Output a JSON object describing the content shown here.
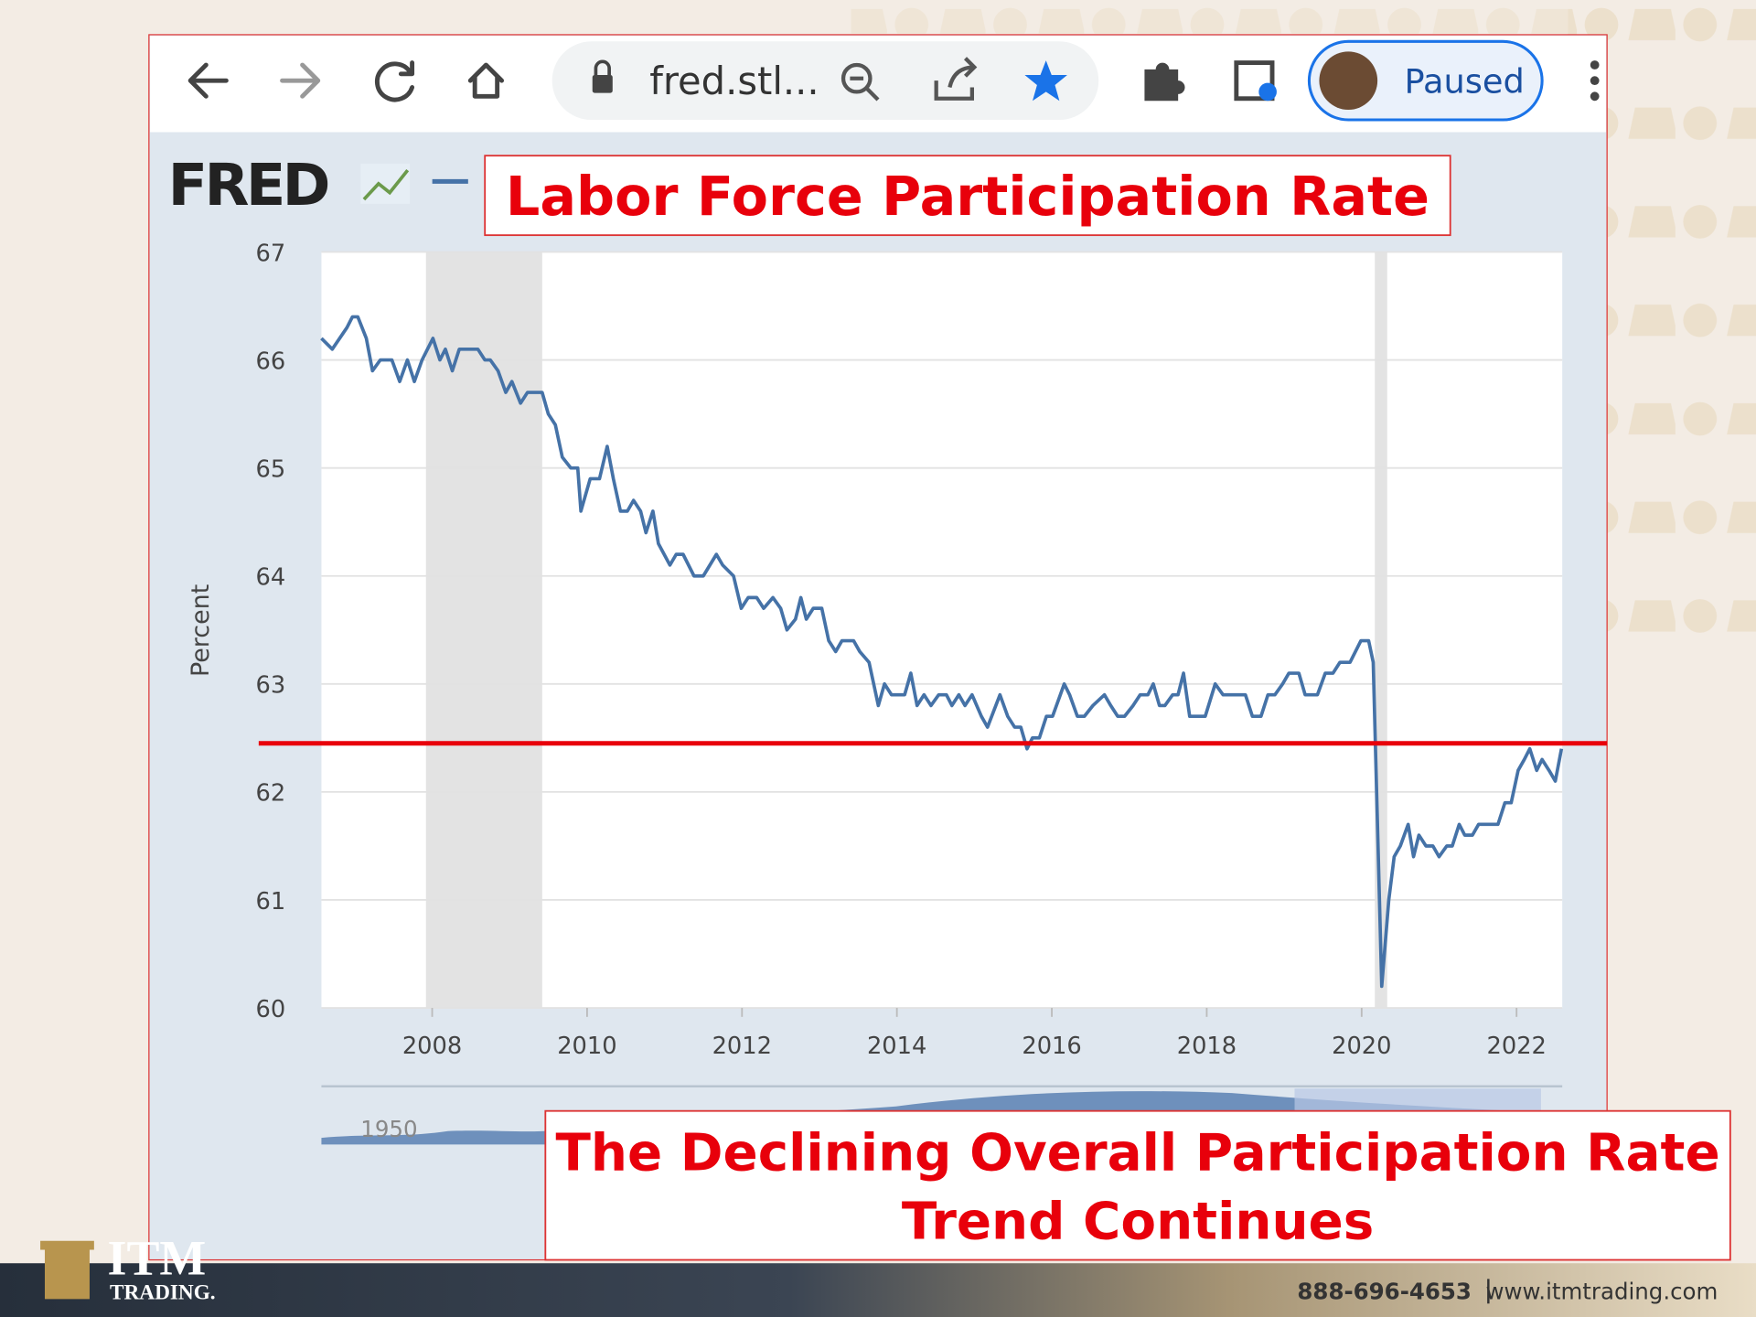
{
  "browser": {
    "url": "fred.stl...",
    "profile_status": "Paused"
  },
  "logo": "FRED",
  "chart_data": {
    "type": "line",
    "title": "Labor Force Participation Rate",
    "y_label": "Percent",
    "color": "#4572a7",
    "x": [
      2006.57,
      2006.71,
      2006.9,
      2006.97,
      2007.04,
      2007.15,
      2007.23,
      2007.33,
      2007.48,
      2007.58,
      2007.68,
      2007.77,
      2007.87,
      2008.01,
      2008.1,
      2008.17,
      2008.26,
      2008.35,
      2008.59,
      2008.68,
      2008.75,
      2008.85,
      2008.95,
      2009.03,
      2009.14,
      2009.23,
      2009.42,
      2009.5,
      2009.59,
      2009.68,
      2009.79,
      2009.88,
      2009.92,
      2010.04,
      2010.16,
      2010.26,
      2010.34,
      2010.43,
      2010.52,
      2010.6,
      2010.69,
      2010.76,
      2010.85,
      2010.92,
      2011.07,
      2011.15,
      2011.24,
      2011.38,
      2011.5,
      2011.67,
      2011.75,
      2011.89,
      2011.99,
      2012.08,
      2012.19,
      2012.28,
      2012.4,
      2012.5,
      2012.58,
      2012.69,
      2012.76,
      2012.83,
      2012.92,
      2013.03,
      2013.12,
      2013.21,
      2013.29,
      2013.44,
      2013.52,
      2013.64,
      2013.76,
      2013.84,
      2013.93,
      2014.1,
      2014.18,
      2014.26,
      2014.35,
      2014.44,
      2014.54,
      2014.64,
      2014.71,
      2014.8,
      2014.88,
      2014.97,
      2015.09,
      2015.17,
      2015.33,
      2015.43,
      2015.52,
      2015.6,
      2015.68,
      2015.75,
      2015.84,
      2015.93,
      2016.01,
      2016.16,
      2016.23,
      2016.33,
      2016.42,
      2016.53,
      2016.68,
      2016.76,
      2016.85,
      2016.94,
      2017.05,
      2017.14,
      2017.24,
      2017.31,
      2017.39,
      2017.46,
      2017.56,
      2017.63,
      2017.7,
      2017.78,
      2017.98,
      2018.11,
      2018.21,
      2018.5,
      2018.59,
      2018.7,
      2018.79,
      2018.88,
      2018.98,
      2019.06,
      2019.19,
      2019.27,
      2019.43,
      2019.53,
      2019.63,
      2019.72,
      2019.85,
      2019.99,
      2020.09,
      2020.15,
      2020.26,
      2020.35,
      2020.42,
      2020.5,
      2020.6,
      2020.67,
      2020.74,
      2020.83,
      2020.92,
      2021.0,
      2021.1,
      2021.17,
      2021.26,
      2021.33,
      2021.43,
      2021.51,
      2021.76,
      2021.85,
      2021.93,
      2022.02,
      2022.1,
      2022.17,
      2022.26,
      2022.33,
      2022.42,
      2022.5,
      2022.58
    ],
    "values": [
      66.2,
      66.1,
      66.3,
      66.4,
      66.4,
      66.2,
      65.9,
      66.0,
      66.0,
      65.8,
      66.0,
      65.8,
      66.0,
      66.2,
      66.0,
      66.1,
      65.9,
      66.1,
      66.1,
      66.0,
      66.0,
      65.9,
      65.7,
      65.8,
      65.6,
      65.7,
      65.7,
      65.5,
      65.4,
      65.1,
      65.0,
      65.0,
      64.6,
      64.9,
      64.9,
      65.2,
      64.9,
      64.6,
      64.6,
      64.7,
      64.6,
      64.4,
      64.6,
      64.3,
      64.1,
      64.2,
      64.2,
      64.0,
      64.0,
      64.2,
      64.1,
      64.0,
      63.7,
      63.8,
      63.8,
      63.7,
      63.8,
      63.7,
      63.5,
      63.6,
      63.8,
      63.6,
      63.7,
      63.7,
      63.4,
      63.3,
      63.4,
      63.4,
      63.3,
      63.2,
      62.8,
      63.0,
      62.9,
      62.9,
      63.1,
      62.8,
      62.9,
      62.8,
      62.9,
      62.9,
      62.8,
      62.9,
      62.8,
      62.9,
      62.7,
      62.6,
      62.9,
      62.7,
      62.6,
      62.6,
      62.4,
      62.5,
      62.5,
      62.7,
      62.7,
      63.0,
      62.9,
      62.7,
      62.7,
      62.8,
      62.9,
      62.8,
      62.7,
      62.7,
      62.8,
      62.9,
      62.9,
      63.0,
      62.8,
      62.8,
      62.9,
      62.9,
      63.1,
      62.7,
      62.7,
      63.0,
      62.9,
      62.9,
      62.7,
      62.7,
      62.9,
      62.9,
      63.0,
      63.1,
      63.1,
      62.9,
      62.9,
      63.1,
      63.1,
      63.2,
      63.2,
      63.4,
      63.4,
      63.2,
      60.2,
      61.0,
      61.4,
      61.5,
      61.7,
      61.4,
      61.6,
      61.5,
      61.5,
      61.4,
      61.5,
      61.5,
      61.7,
      61.6,
      61.6,
      61.7,
      61.7,
      61.9,
      61.9,
      62.2,
      62.3,
      62.4,
      62.2,
      62.3,
      62.2,
      62.1,
      62.4
    ],
    "xlim": [
      2006.57,
      2022.59
    ],
    "ylim": [
      60,
      67
    ],
    "xticks": [
      2008,
      2010,
      2012,
      2014,
      2016,
      2018,
      2020,
      2022
    ],
    "yticks": [
      60,
      61,
      62,
      63,
      64,
      65,
      66,
      67
    ],
    "grid": true,
    "shaded_ranges": [
      [
        2007.92,
        2009.42
      ],
      [
        2020.17,
        2020.33
      ]
    ],
    "reference_line": {
      "value": 62.45,
      "color": "#e8000b"
    },
    "navigator_label": "1950",
    "annotation": [
      "The Declining Overall Participation Rate",
      "Trend Continues"
    ]
  },
  "footer": {
    "brand": "ITM",
    "brand_sub": "TRADING.",
    "phone": "888-696-4653",
    "website": "www.itmtrading.com"
  }
}
